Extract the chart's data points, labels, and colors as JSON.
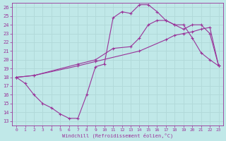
{
  "xlabel": "Windchill (Refroidissement éolien,°C)",
  "xlim": [
    -0.5,
    23.5
  ],
  "ylim": [
    12.5,
    26.5
  ],
  "yticks": [
    13,
    14,
    15,
    16,
    17,
    18,
    19,
    20,
    21,
    22,
    23,
    24,
    25,
    26
  ],
  "xticks": [
    0,
    1,
    2,
    3,
    4,
    5,
    6,
    7,
    8,
    9,
    10,
    11,
    12,
    13,
    14,
    15,
    16,
    17,
    18,
    19,
    20,
    21,
    22,
    23
  ],
  "bg_color": "#c0e8e8",
  "line_color": "#993399",
  "grid_color": "#b0d8d8",
  "line1_x": [
    0,
    1,
    2,
    3,
    4,
    5,
    6,
    7,
    8,
    9,
    10,
    11,
    12,
    13,
    14,
    15,
    16,
    17,
    18,
    19,
    20,
    21,
    22,
    23
  ],
  "line1_y": [
    18,
    17.3,
    16,
    15,
    14.5,
    13.8,
    13.3,
    13.3,
    16,
    19.2,
    19.5,
    24.8,
    25.5,
    25.3,
    26.3,
    26.3,
    25.5,
    24.5,
    24,
    24,
    22.5,
    20.8,
    20,
    19.3
  ],
  "line2_x": [
    0,
    2,
    7,
    9,
    11,
    13,
    14,
    15,
    16,
    17,
    18,
    19,
    20,
    21,
    22,
    23
  ],
  "line2_y": [
    18,
    18.2,
    19.5,
    20,
    21.3,
    21.5,
    22.5,
    24,
    24.5,
    24.5,
    24,
    23.5,
    24,
    24,
    23,
    19.3
  ],
  "line3_x": [
    0,
    2,
    7,
    9,
    14,
    17,
    18,
    19,
    20,
    21,
    22,
    23
  ],
  "line3_y": [
    18,
    18.2,
    19.3,
    19.8,
    21,
    22.3,
    22.8,
    23,
    23.2,
    23.5,
    23.7,
    19.3
  ]
}
